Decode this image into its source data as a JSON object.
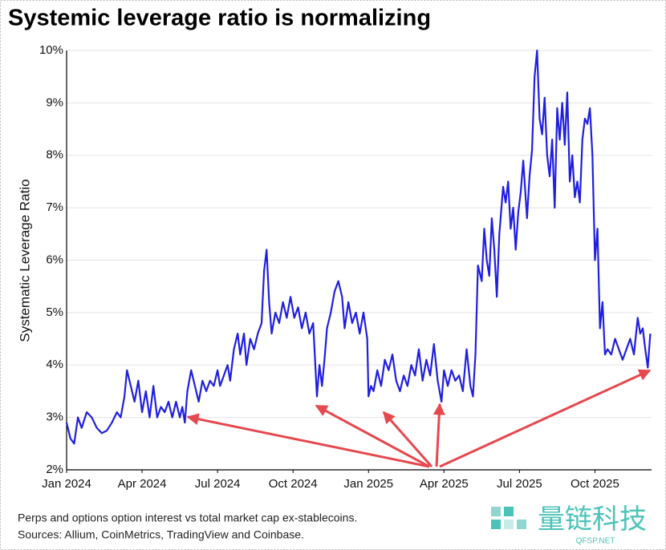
{
  "chart_data": {
    "type": "line",
    "title": "Systemic leverage ratio is normalizing",
    "y_label": "Systematic Leverage Ratio",
    "notes": [
      "Perps and options option interest vs total market cap ex-stablecoins.",
      "Sources: Allium, CoinMetrics, TradingView and Coinbase."
    ],
    "watermark": {
      "name": "量链科技",
      "site": "QFSP.NET"
    },
    "grid": true,
    "xlim": [
      0,
      23.25
    ],
    "xticks": [
      {
        "value": 0,
        "label": "Jan 2024"
      },
      {
        "value": 3,
        "label": "Apr 2024"
      },
      {
        "value": 6,
        "label": "Jul 2024"
      },
      {
        "value": 9,
        "label": "Oct 2024"
      },
      {
        "value": 12,
        "label": "Jan 2025"
      },
      {
        "value": 15,
        "label": "Apr 2025"
      },
      {
        "value": 18,
        "label": "Jul 2025"
      },
      {
        "value": 21,
        "label": "Oct 2025"
      }
    ],
    "ylim": [
      2,
      10
    ],
    "yticks": [
      {
        "value": 2,
        "label": "2%"
      },
      {
        "value": 3,
        "label": "3%"
      },
      {
        "value": 4,
        "label": "4%"
      },
      {
        "value": 5,
        "label": "5%"
      },
      {
        "value": 6,
        "label": "6%"
      },
      {
        "value": 7,
        "label": "7%"
      },
      {
        "value": 8,
        "label": "8%"
      },
      {
        "value": 9,
        "label": "9%"
      },
      {
        "value": 10,
        "label": "10%"
      }
    ],
    "x": [
      0,
      0.15,
      0.3,
      0.45,
      0.6,
      0.8,
      1.0,
      1.2,
      1.4,
      1.6,
      1.8,
      2.0,
      2.15,
      2.3,
      2.4,
      2.55,
      2.7,
      2.85,
      3.0,
      3.15,
      3.3,
      3.45,
      3.6,
      3.75,
      3.9,
      4.05,
      4.2,
      4.35,
      4.5,
      4.6,
      4.7,
      4.8,
      4.95,
      5.1,
      5.25,
      5.4,
      5.55,
      5.7,
      5.85,
      6.0,
      6.1,
      6.25,
      6.4,
      6.5,
      6.65,
      6.8,
      6.9,
      7.05,
      7.15,
      7.3,
      7.45,
      7.6,
      7.75,
      7.85,
      7.95,
      8.05,
      8.15,
      8.3,
      8.45,
      8.6,
      8.75,
      8.9,
      9.05,
      9.2,
      9.35,
      9.5,
      9.65,
      9.8,
      9.95,
      10.05,
      10.15,
      10.25,
      10.35,
      10.5,
      10.65,
      10.8,
      10.95,
      11.05,
      11.2,
      11.35,
      11.5,
      11.65,
      11.8,
      11.95,
      12.0,
      12.1,
      12.2,
      12.35,
      12.5,
      12.65,
      12.8,
      12.95,
      13.1,
      13.25,
      13.4,
      13.55,
      13.7,
      13.85,
      14.0,
      14.15,
      14.3,
      14.45,
      14.6,
      14.75,
      14.9,
      15.0,
      15.15,
      15.3,
      15.45,
      15.6,
      15.75,
      15.9,
      16.05,
      16.15,
      16.25,
      16.35,
      16.5,
      16.6,
      16.7,
      16.8,
      16.9,
      17.0,
      17.1,
      17.2,
      17.35,
      17.45,
      17.55,
      17.65,
      17.75,
      17.85,
      17.95,
      18.05,
      18.15,
      18.3,
      18.4,
      18.5,
      18.6,
      18.7,
      18.8,
      18.9,
      19.0,
      19.1,
      19.2,
      19.3,
      19.4,
      19.5,
      19.6,
      19.7,
      19.8,
      19.9,
      20.0,
      20.1,
      20.2,
      20.3,
      20.4,
      20.5,
      20.6,
      20.7,
      20.8,
      20.9,
      21.0,
      21.1,
      21.2,
      21.3,
      21.4,
      21.5,
      21.65,
      21.8,
      21.95,
      22.1,
      22.25,
      22.4,
      22.55,
      22.7,
      22.8,
      22.9,
      23.0,
      23.1,
      23.2
    ],
    "series": [
      {
        "color": "#1f1fe0",
        "values": [
          2.9,
          2.6,
          2.5,
          3.0,
          2.8,
          3.1,
          3.0,
          2.8,
          2.7,
          2.75,
          2.9,
          3.1,
          3.0,
          3.4,
          3.9,
          3.6,
          3.3,
          3.7,
          3.1,
          3.5,
          3.0,
          3.6,
          3.0,
          3.2,
          3.1,
          3.3,
          3.0,
          3.3,
          3.0,
          3.2,
          2.9,
          3.5,
          3.9,
          3.6,
          3.3,
          3.7,
          3.5,
          3.7,
          3.6,
          3.9,
          3.6,
          3.8,
          4.0,
          3.7,
          4.3,
          4.6,
          4.2,
          4.6,
          4.0,
          4.5,
          4.3,
          4.6,
          4.8,
          5.8,
          6.2,
          5.2,
          4.6,
          5.0,
          4.8,
          5.2,
          4.9,
          5.3,
          4.9,
          5.1,
          4.7,
          5.0,
          4.6,
          4.8,
          3.4,
          4.0,
          3.6,
          4.1,
          4.7,
          5.0,
          5.4,
          5.6,
          5.3,
          4.7,
          5.2,
          4.8,
          5.0,
          4.6,
          5.0,
          4.5,
          3.4,
          3.6,
          3.5,
          3.9,
          3.6,
          4.1,
          3.9,
          4.2,
          3.7,
          3.5,
          3.8,
          3.6,
          4.0,
          3.8,
          4.3,
          3.7,
          4.1,
          3.8,
          4.4,
          3.7,
          3.3,
          3.9,
          3.6,
          3.9,
          3.7,
          3.8,
          3.5,
          4.3,
          3.6,
          3.4,
          4.2,
          5.9,
          5.6,
          6.6,
          6.0,
          5.7,
          6.8,
          6.2,
          5.3,
          6.5,
          7.4,
          7.1,
          7.5,
          6.6,
          7.0,
          6.2,
          6.9,
          7.3,
          7.9,
          6.8,
          7.6,
          8.1,
          9.5,
          10.0,
          8.7,
          8.4,
          9.1,
          8.0,
          7.6,
          8.3,
          7.0,
          8.9,
          8.3,
          9.0,
          8.2,
          9.2,
          7.5,
          8.0,
          7.2,
          7.5,
          7.1,
          8.3,
          8.7,
          8.6,
          8.9,
          8.0,
          6.0,
          6.6,
          4.7,
          5.2,
          4.2,
          4.3,
          4.2,
          4.5,
          4.3,
          4.1,
          4.3,
          4.5,
          4.2,
          4.9,
          4.6,
          4.7,
          4.3,
          3.95,
          4.6
        ]
      }
    ]
  }
}
